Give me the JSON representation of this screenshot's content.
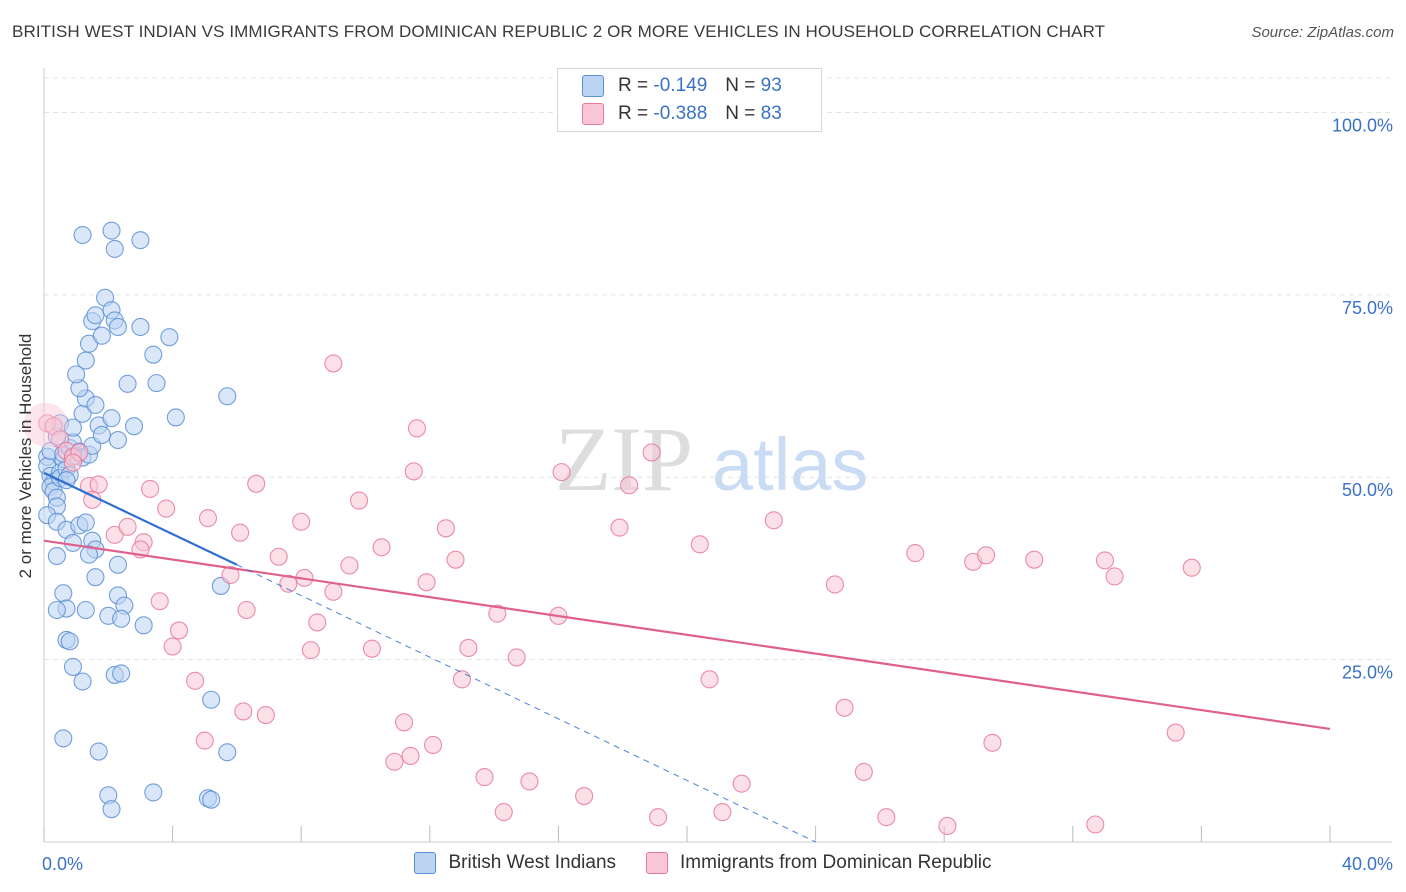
{
  "title": "BRITISH WEST INDIAN VS IMMIGRANTS FROM DOMINICAN REPUBLIC 2 OR MORE VEHICLES IN HOUSEHOLD CORRELATION CHART",
  "source": "Source: ZipAtlas.com",
  "watermark": {
    "zip": "ZIP",
    "atlas": "atlas"
  },
  "legend": {
    "r_label": "R =",
    "n_label": "N =",
    "series": [
      {
        "r": "-0.149",
        "n": "93"
      },
      {
        "r": "-0.388",
        "n": "83"
      }
    ]
  },
  "colors": {
    "blue": "#5b8fd6",
    "blue_fill": "#bcd3f3",
    "blue_line": "#2f6fcf",
    "pink": "#e6799c",
    "pink_fill": "#f8c6d5",
    "pink_line": "#e0608d",
    "tick_label": "#3a72c8",
    "grid": "#e3e3e3"
  },
  "chart_data": {
    "type": "scatter",
    "title": "BRITISH WEST INDIAN VS IMMIGRANTS FROM DOMINICAN REPUBLIC 2 OR MORE VEHICLES IN HOUSEHOLD CORRELATION CHART",
    "xlabel": "",
    "ylabel": "2 or more Vehicles in Household",
    "xlim": [
      0,
      40
    ],
    "ylim": [
      0,
      105
    ],
    "x_tick_labels": {
      "min": "0.0%",
      "max": "40.0%"
    },
    "y_ticks": [
      {
        "value": 100,
        "label": "100.0%"
      },
      {
        "value": 75,
        "label": "75.0%"
      },
      {
        "value": 50,
        "label": "50.0%"
      },
      {
        "value": 25,
        "label": "25.0%"
      }
    ],
    "series": [
      {
        "name": "British West Indians",
        "r": -0.149,
        "n": 93,
        "trend": {
          "x0": 0,
          "y0": 50.6,
          "x1": 6.0,
          "y1": 38.0,
          "dash_to_x": 24,
          "dash_to_y": 0
        },
        "points": [
          [
            0.1,
            52.8
          ],
          [
            0.1,
            51.5
          ],
          [
            0.2,
            53.6
          ],
          [
            0.2,
            50.2
          ],
          [
            0.3,
            49.4
          ],
          [
            0.2,
            48.7
          ],
          [
            0.3,
            48.1
          ],
          [
            0.4,
            47.2
          ],
          [
            0.4,
            46.0
          ],
          [
            0.1,
            44.8
          ],
          [
            0.5,
            50.7
          ],
          [
            0.5,
            49.9
          ],
          [
            0.6,
            52.5
          ],
          [
            0.7,
            51.2
          ],
          [
            0.8,
            50.3
          ],
          [
            0.7,
            49.6
          ],
          [
            0.6,
            53.2
          ],
          [
            0.8,
            54.0
          ],
          [
            0.4,
            55.6
          ],
          [
            0.5,
            57.4
          ],
          [
            0.9,
            54.8
          ],
          [
            1.0,
            52.9
          ],
          [
            1.1,
            53.5
          ],
          [
            1.2,
            52.7
          ],
          [
            1.4,
            53.1
          ],
          [
            1.5,
            54.3
          ],
          [
            0.9,
            56.8
          ],
          [
            1.2,
            58.7
          ],
          [
            1.3,
            60.8
          ],
          [
            1.1,
            62.2
          ],
          [
            1.0,
            64.1
          ],
          [
            1.3,
            66.0
          ],
          [
            1.4,
            68.3
          ],
          [
            1.5,
            71.4
          ],
          [
            1.6,
            72.2
          ],
          [
            1.8,
            69.4
          ],
          [
            1.9,
            74.6
          ],
          [
            2.1,
            72.9
          ],
          [
            2.2,
            71.5
          ],
          [
            2.3,
            70.6
          ],
          [
            1.6,
            59.9
          ],
          [
            1.7,
            57.1
          ],
          [
            1.8,
            55.8
          ],
          [
            2.1,
            58.1
          ],
          [
            2.3,
            55.1
          ],
          [
            2.6,
            62.8
          ],
          [
            2.8,
            57.0
          ],
          [
            3.0,
            70.6
          ],
          [
            3.4,
            66.8
          ],
          [
            3.9,
            69.2
          ],
          [
            1.2,
            83.2
          ],
          [
            2.1,
            83.8
          ],
          [
            2.2,
            81.3
          ],
          [
            3.0,
            82.5
          ],
          [
            0.4,
            43.9
          ],
          [
            0.7,
            42.8
          ],
          [
            0.9,
            41.0
          ],
          [
            1.1,
            43.4
          ],
          [
            1.3,
            43.8
          ],
          [
            1.5,
            41.3
          ],
          [
            1.6,
            40.1
          ],
          [
            1.4,
            39.4
          ],
          [
            0.4,
            39.2
          ],
          [
            0.6,
            34.1
          ],
          [
            0.7,
            32.0
          ],
          [
            0.4,
            31.8
          ],
          [
            1.3,
            31.8
          ],
          [
            2.0,
            31.0
          ],
          [
            2.3,
            33.8
          ],
          [
            2.5,
            32.4
          ],
          [
            2.4,
            30.6
          ],
          [
            3.1,
            29.7
          ],
          [
            0.7,
            27.7
          ],
          [
            0.8,
            27.5
          ],
          [
            0.9,
            24.0
          ],
          [
            1.2,
            22.0
          ],
          [
            2.2,
            22.9
          ],
          [
            2.4,
            23.1
          ],
          [
            0.6,
            14.2
          ],
          [
            1.7,
            12.4
          ],
          [
            2.0,
            6.4
          ],
          [
            2.1,
            4.5
          ],
          [
            3.4,
            6.8
          ],
          [
            5.1,
            6.0
          ],
          [
            5.2,
            5.8
          ],
          [
            5.7,
            12.3
          ],
          [
            5.2,
            19.5
          ],
          [
            5.5,
            35.1
          ],
          [
            5.7,
            61.1
          ],
          [
            4.1,
            58.2
          ],
          [
            3.5,
            62.9
          ],
          [
            2.3,
            38.0
          ],
          [
            1.6,
            36.3
          ]
        ]
      },
      {
        "name": "Immigrants from Dominican Republic",
        "r": -0.388,
        "n": 83,
        "trend": {
          "x0": 0,
          "y0": 41.3,
          "x1": 40,
          "y1": 15.5
        },
        "points": [
          [
            0.1,
            57.4
          ],
          [
            0.3,
            57.0
          ],
          [
            0.5,
            55.2
          ],
          [
            0.7,
            53.6
          ],
          [
            0.9,
            52.8
          ],
          [
            1.1,
            53.4
          ],
          [
            0.9,
            52.0
          ],
          [
            1.4,
            48.8
          ],
          [
            1.7,
            49.0
          ],
          [
            1.5,
            46.9
          ],
          [
            2.2,
            42.1
          ],
          [
            2.6,
            43.2
          ],
          [
            3.1,
            41.1
          ],
          [
            3.0,
            40.1
          ],
          [
            3.3,
            48.4
          ],
          [
            3.8,
            45.7
          ],
          [
            3.6,
            33.0
          ],
          [
            4.2,
            29.0
          ],
          [
            4.0,
            26.8
          ],
          [
            4.7,
            22.1
          ],
          [
            5.1,
            44.4
          ],
          [
            5.8,
            36.6
          ],
          [
            6.1,
            42.4
          ],
          [
            6.3,
            31.8
          ],
          [
            6.6,
            49.1
          ],
          [
            6.2,
            17.9
          ],
          [
            6.9,
            17.4
          ],
          [
            5.0,
            13.9
          ],
          [
            7.3,
            39.1
          ],
          [
            7.6,
            35.4
          ],
          [
            8.0,
            43.9
          ],
          [
            8.1,
            36.2
          ],
          [
            8.5,
            30.1
          ],
          [
            8.3,
            26.3
          ],
          [
            9.0,
            34.3
          ],
          [
            9.5,
            37.9
          ],
          [
            9.8,
            46.8
          ],
          [
            10.2,
            26.5
          ],
          [
            10.5,
            40.4
          ],
          [
            11.2,
            16.4
          ],
          [
            10.9,
            11.0
          ],
          [
            11.4,
            11.8
          ],
          [
            11.5,
            50.8
          ],
          [
            11.9,
            35.6
          ],
          [
            12.1,
            13.3
          ],
          [
            12.5,
            43.0
          ],
          [
            12.8,
            38.7
          ],
          [
            13.0,
            22.3
          ],
          [
            13.2,
            26.6
          ],
          [
            13.7,
            8.9
          ],
          [
            14.1,
            31.3
          ],
          [
            14.7,
            25.3
          ],
          [
            14.3,
            4.1
          ],
          [
            15.1,
            8.3
          ],
          [
            16.1,
            50.7
          ],
          [
            16.0,
            31.0
          ],
          [
            16.8,
            6.3
          ],
          [
            17.9,
            43.1
          ],
          [
            18.2,
            48.9
          ],
          [
            18.9,
            53.4
          ],
          [
            19.1,
            3.4
          ],
          [
            20.7,
            22.3
          ],
          [
            20.4,
            40.8
          ],
          [
            21.1,
            4.1
          ],
          [
            21.7,
            8.0
          ],
          [
            22.7,
            44.1
          ],
          [
            24.6,
            35.3
          ],
          [
            24.9,
            18.4
          ],
          [
            25.5,
            9.6
          ],
          [
            26.2,
            3.4
          ],
          [
            27.1,
            39.6
          ],
          [
            28.1,
            2.2
          ],
          [
            28.9,
            38.4
          ],
          [
            29.3,
            39.3
          ],
          [
            29.5,
            13.6
          ],
          [
            30.8,
            38.7
          ],
          [
            32.7,
            2.4
          ],
          [
            33.0,
            38.6
          ],
          [
            33.3,
            36.4
          ],
          [
            35.2,
            15.0
          ],
          [
            35.7,
            37.6
          ],
          [
            9.0,
            65.6
          ],
          [
            11.6,
            56.7
          ]
        ]
      }
    ]
  }
}
